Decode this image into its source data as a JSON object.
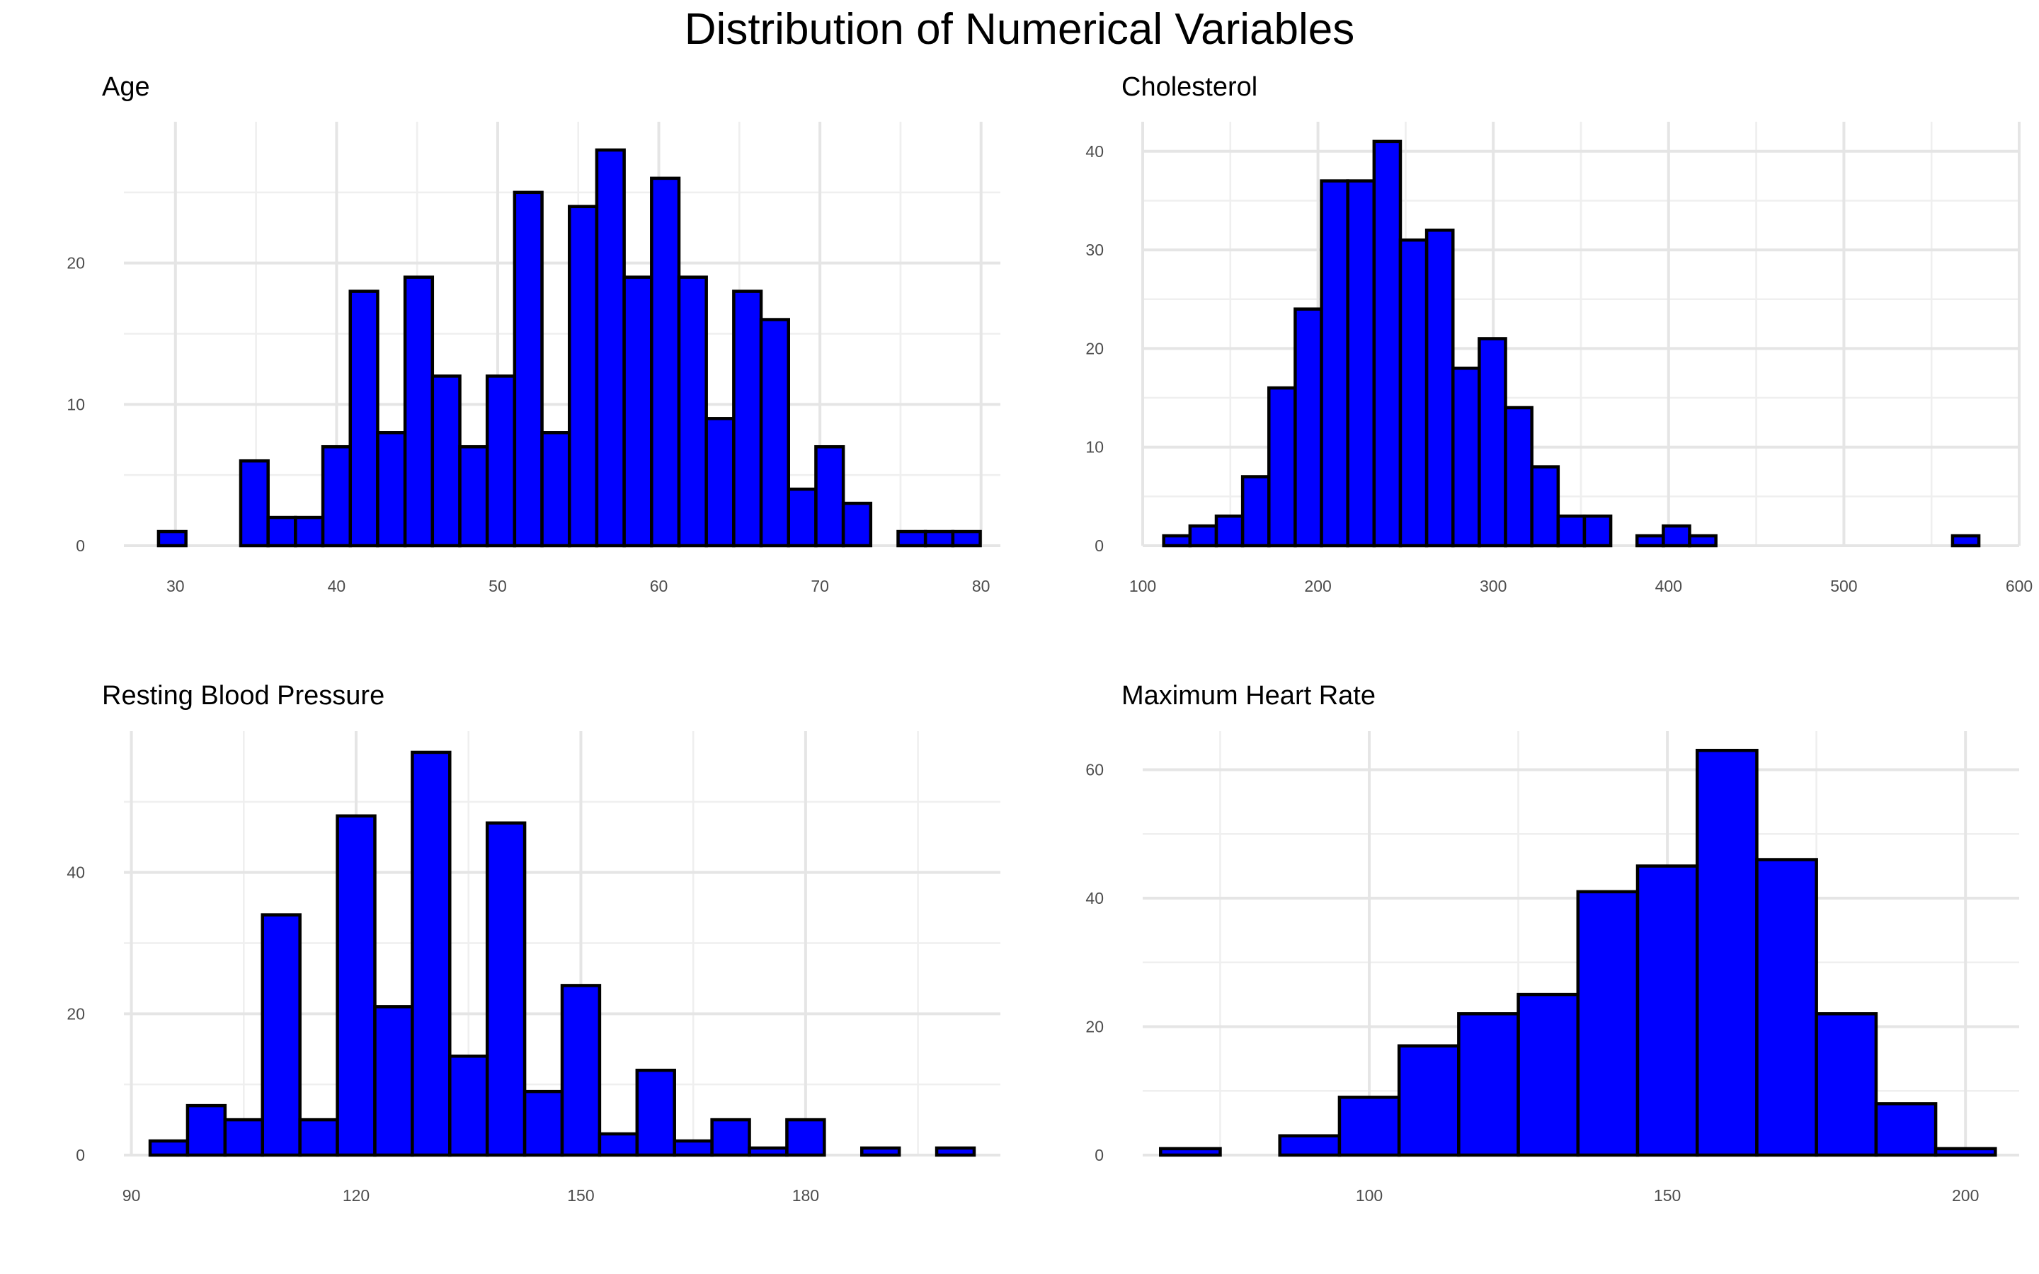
{
  "title": "Distribution of Numerical Variables",
  "colors": {
    "bar_fill": "#0000ff",
    "bar_stroke": "#000000",
    "grid": "#e5e5e5"
  },
  "chart_data": [
    {
      "type": "bar",
      "title": "Age",
      "xlabel": "",
      "ylabel": "",
      "grid": true,
      "xlim": [
        26.8,
        81.2
      ],
      "ylim": [
        0,
        30
      ],
      "xticks": [
        30,
        40,
        50,
        60,
        70,
        80
      ],
      "yticks": [
        0,
        10,
        20
      ],
      "bin_width": 1.7,
      "bins_start": 28.95,
      "values": [
        1,
        0,
        0,
        6,
        2,
        2,
        7,
        18,
        8,
        19,
        12,
        7,
        12,
        25,
        8,
        24,
        28,
        19,
        26,
        19,
        9,
        18,
        16,
        4,
        7,
        3,
        0,
        1,
        1,
        1
      ]
    },
    {
      "type": "bar",
      "title": "Cholesterol",
      "xlabel": "",
      "ylabel": "",
      "grid": true,
      "xlim": [
        100,
        600
      ],
      "ylim": [
        0,
        43
      ],
      "xticks": [
        100,
        200,
        300,
        400,
        500,
        600
      ],
      "yticks": [
        0,
        10,
        20,
        30,
        40
      ],
      "bin_width": 15,
      "bins_start": 112,
      "values": [
        1,
        2,
        3,
        7,
        16,
        24,
        37,
        37,
        41,
        31,
        32,
        18,
        21,
        14,
        8,
        3,
        3,
        0,
        1,
        2,
        1,
        0,
        0,
        0,
        0,
        0,
        0,
        0,
        0,
        0,
        1
      ]
    },
    {
      "type": "bar",
      "title": "Resting Blood Pressure",
      "xlabel": "",
      "ylabel": "",
      "grid": true,
      "xlim": [
        89,
        206
      ],
      "ylim": [
        0,
        60
      ],
      "xticks": [
        90,
        120,
        150,
        180
      ],
      "yticks": [
        0,
        20,
        40
      ],
      "bin_width": 5,
      "bins_start": 92.5,
      "values": [
        2,
        7,
        5,
        34,
        5,
        48,
        21,
        57,
        14,
        47,
        9,
        24,
        3,
        12,
        2,
        5,
        1,
        5,
        0,
        1,
        0,
        1
      ]
    },
    {
      "type": "bar",
      "title": "Maximum Heart Rate",
      "xlabel": "",
      "ylabel": "",
      "grid": true,
      "xlim": [
        62,
        209
      ],
      "ylim": [
        0,
        66
      ],
      "xticks": [
        100,
        150,
        200
      ],
      "yticks": [
        0,
        20,
        40,
        60
      ],
      "bin_width": 10,
      "bins_start": 65,
      "values": [
        1,
        0,
        3,
        9,
        17,
        22,
        25,
        41,
        45,
        63,
        46,
        22,
        8,
        1
      ]
    }
  ]
}
